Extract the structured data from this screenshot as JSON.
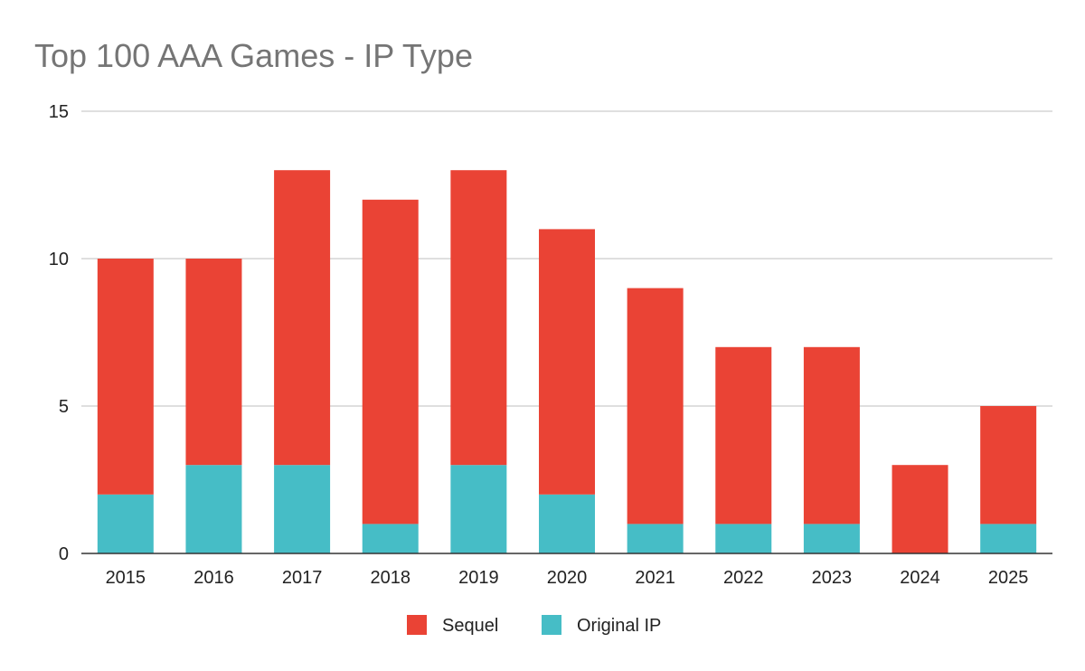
{
  "chart_data": {
    "type": "bar",
    "stacked": true,
    "title": "Top 100 AAA Games - IP Type",
    "xlabel": "",
    "ylabel": "",
    "categories": [
      "2015",
      "2016",
      "2017",
      "2018",
      "2019",
      "2020",
      "2021",
      "2022",
      "2023",
      "2024",
      "2025"
    ],
    "series": [
      {
        "name": "Original IP",
        "color": "#46bdc6",
        "values": [
          2,
          3,
          3,
          1,
          3,
          2,
          1,
          1,
          1,
          0,
          1
        ]
      },
      {
        "name": "Sequel",
        "color": "#ea4335",
        "values": [
          8,
          7,
          10,
          11,
          10,
          9,
          8,
          6,
          6,
          3,
          4
        ]
      }
    ],
    "ylim": [
      0,
      15
    ],
    "yticks": [
      "0",
      "5",
      "10",
      "15"
    ],
    "grid": true,
    "legend": {
      "position": "bottom",
      "entries": [
        {
          "label": "Sequel",
          "color": "#ea4335"
        },
        {
          "label": "Original IP",
          "color": "#46bdc6"
        }
      ]
    }
  }
}
